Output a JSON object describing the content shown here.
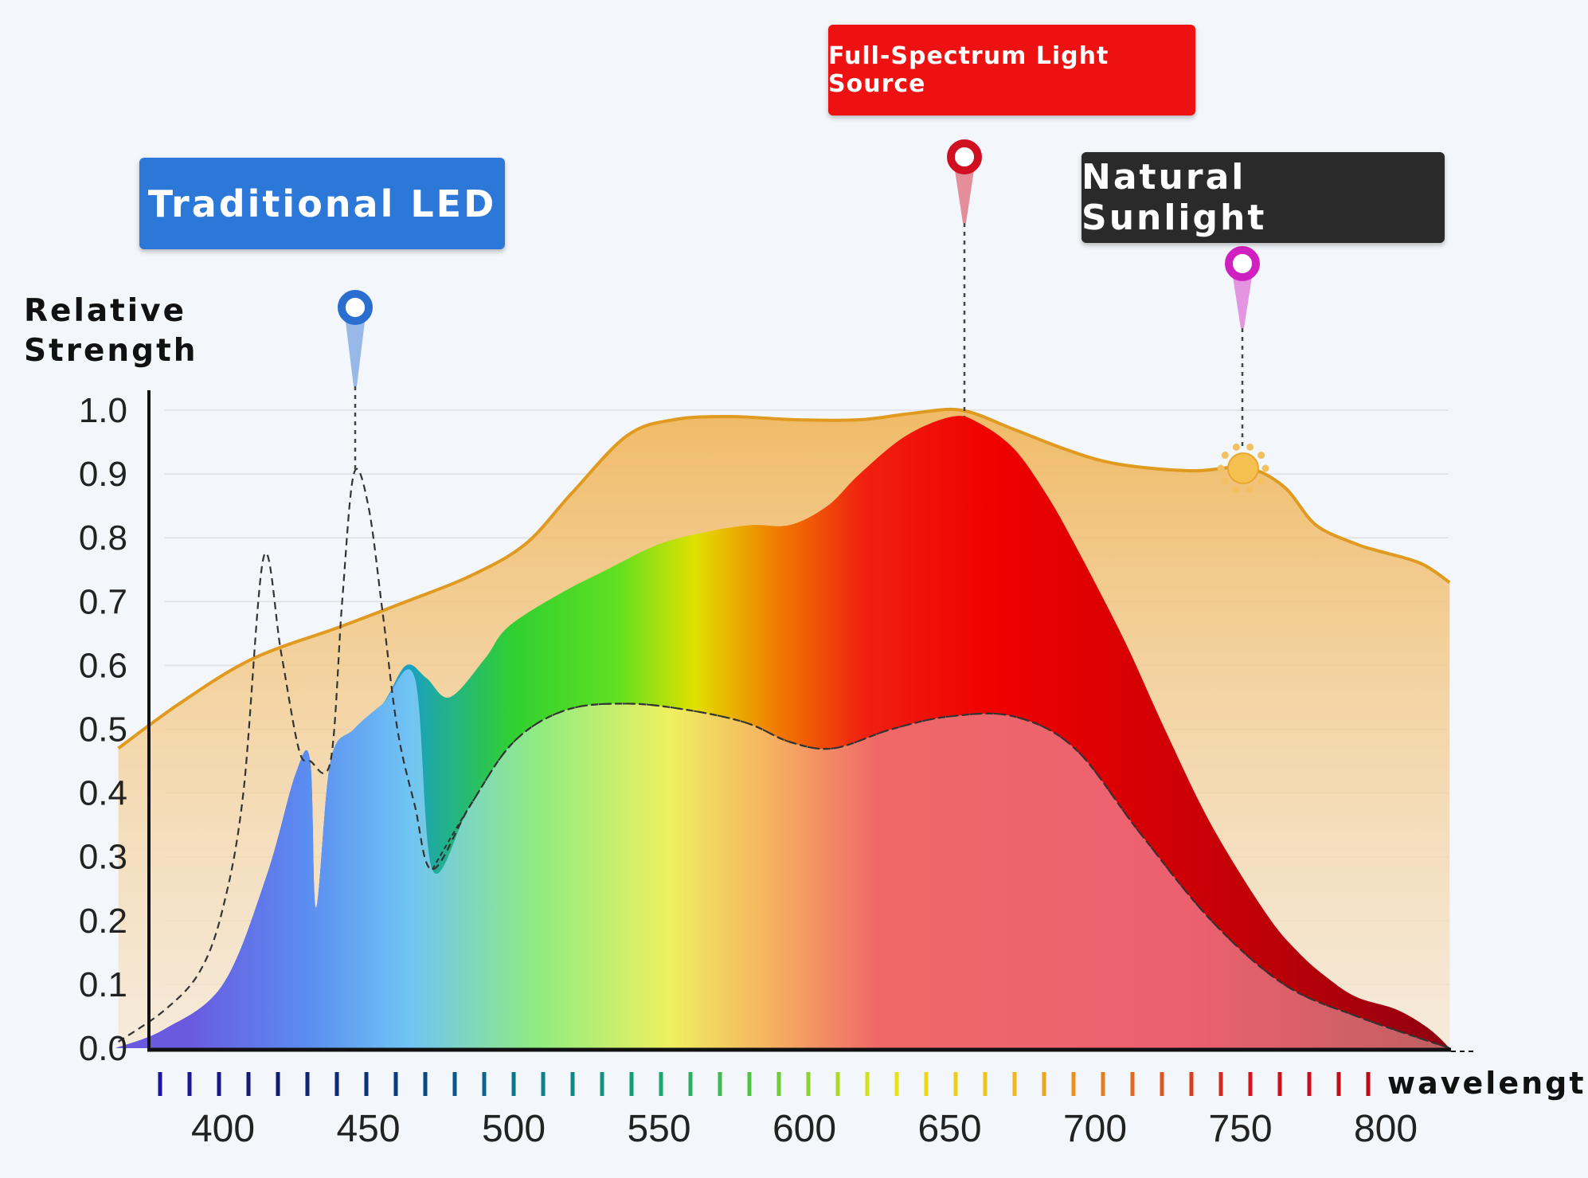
{
  "labels": {
    "traditional_led": "Traditional LED",
    "full_spectrum": "Full-Spectrum Light Source",
    "natural_sunlight": "Natural Sunlight"
  },
  "colors": {
    "traditional_led": "#2b78d8",
    "full_spectrum": "#ee1111",
    "natural_sunlight": "#2a2a2a",
    "sunlight_curve": "#e09a20",
    "led_pin": "#2a6fd0",
    "full_pin": "#d01020",
    "sun_pin": "#d020c0"
  },
  "chart_data": {
    "type": "area",
    "ylabel": "Relative Strength",
    "xlabel": "wavelength",
    "xlim": [
      363,
      822
    ],
    "ylim": [
      0,
      1.0
    ],
    "xticks": [
      "400",
      "450",
      "500",
      "550",
      "600",
      "650",
      "700",
      "750",
      "800"
    ],
    "yticks": [
      "0.0",
      "0.1",
      "0.2",
      "0.3",
      "0.4",
      "0.5",
      "0.6",
      "0.7",
      "0.8",
      "0.9",
      "1.0"
    ],
    "grid": true,
    "series": [
      {
        "name": "Natural Sunlight",
        "style": "orange-filled-area",
        "x": [
          364,
          385,
          410,
          440,
          463,
          485,
          504,
          520,
          539,
          555,
          574,
          597,
          619,
          637,
          654,
          672,
          689,
          703,
          717,
          735,
          752,
          765,
          776,
          790,
          797,
          812,
          822
        ],
        "y": [
          0.47,
          0.54,
          0.61,
          0.66,
          0.7,
          0.74,
          0.79,
          0.87,
          0.96,
          0.985,
          0.99,
          0.985,
          0.985,
          0.995,
          1.0,
          0.97,
          0.94,
          0.92,
          0.91,
          0.905,
          0.91,
          0.88,
          0.82,
          0.79,
          0.78,
          0.76,
          0.73
        ]
      },
      {
        "name": "Full-Spectrum Light Source",
        "style": "spectrum-filled-area",
        "x": [
          363,
          380,
          400,
          415,
          425,
          430,
          432,
          437,
          445,
          455,
          463,
          470,
          478,
          490,
          498,
          515,
          532,
          550,
          567,
          582,
          595,
          608,
          619,
          635,
          651,
          660,
          672,
          683,
          693,
          710,
          724,
          740,
          759,
          770,
          780,
          790,
          804,
          815,
          822
        ],
        "y": [
          0.0,
          0.03,
          0.1,
          0.27,
          0.43,
          0.45,
          0.22,
          0.45,
          0.5,
          0.54,
          0.6,
          0.58,
          0.55,
          0.61,
          0.66,
          0.71,
          0.75,
          0.79,
          0.81,
          0.82,
          0.82,
          0.85,
          0.9,
          0.96,
          0.99,
          0.98,
          0.94,
          0.87,
          0.79,
          0.64,
          0.5,
          0.35,
          0.21,
          0.15,
          0.11,
          0.08,
          0.06,
          0.03,
          0.0
        ]
      },
      {
        "style": "pastel-base-area",
        "x": [
          363,
          380,
          400,
          415,
          425,
          430,
          432,
          437,
          445,
          455,
          466,
          472,
          485,
          500,
          518,
          539,
          560,
          580,
          595,
          610,
          630,
          650,
          672,
          693,
          715,
          740,
          765,
          790,
          822
        ],
        "y": [
          0.0,
          0.03,
          0.1,
          0.27,
          0.43,
          0.45,
          0.22,
          0.45,
          0.5,
          0.54,
          0.58,
          0.28,
          0.38,
          0.48,
          0.53,
          0.54,
          0.53,
          0.51,
          0.48,
          0.47,
          0.5,
          0.52,
          0.52,
          0.47,
          0.34,
          0.2,
          0.1,
          0.05,
          0.0
        ]
      },
      {
        "name": "Traditional LED",
        "style": "dashed-line",
        "x": [
          364,
          380,
          392,
          400,
          407,
          414,
          420,
          426,
          430,
          437,
          441,
          445,
          450,
          455,
          460,
          466,
          472,
          485,
          500,
          518,
          539,
          560,
          580,
          595,
          610,
          630,
          650,
          672,
          693,
          715,
          740,
          765,
          790,
          822
        ],
        "y": [
          0.01,
          0.06,
          0.12,
          0.22,
          0.4,
          0.77,
          0.62,
          0.47,
          0.45,
          0.45,
          0.7,
          0.9,
          0.85,
          0.68,
          0.5,
          0.38,
          0.28,
          0.38,
          0.48,
          0.53,
          0.54,
          0.53,
          0.51,
          0.48,
          0.47,
          0.5,
          0.52,
          0.52,
          0.47,
          0.34,
          0.2,
          0.1,
          0.05,
          0.0
        ]
      }
    ],
    "annotations": [
      {
        "label": "Traditional LED",
        "x": 445,
        "y": 0.9
      },
      {
        "label": "Full-Spectrum Light Source",
        "x": 655,
        "y": 0.99
      },
      {
        "label": "Natural Sunlight",
        "x": 752,
        "y": 0.91
      }
    ]
  }
}
